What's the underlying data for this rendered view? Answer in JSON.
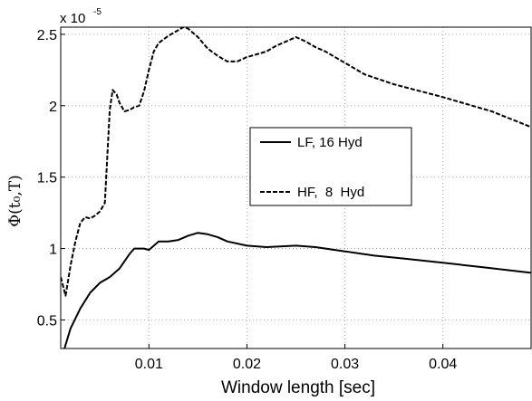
{
  "chart_data": {
    "type": "line",
    "title": "",
    "xlabel": "Window length [sec]",
    "ylabel": "Φ(t₀,T)",
    "y_multiplier": "x 10",
    "y_multiplier_exp": "-5",
    "xlim": [
      0.001,
      0.049
    ],
    "ylim": [
      0.3,
      2.55
    ],
    "x_ticks": [
      0.01,
      0.02,
      0.03,
      0.04
    ],
    "x_tick_labels": [
      "0.01",
      "0.02",
      "0.03",
      "0.04"
    ],
    "y_ticks": [
      0.5,
      1,
      1.5,
      2,
      2.5
    ],
    "y_tick_labels": [
      "0.5",
      "1",
      "1.5",
      "2",
      "2.5"
    ],
    "grid": true,
    "legend_position": "center-right",
    "series": [
      {
        "name": "LF, 16 Hyd",
        "style": "solid",
        "x": [
          0.0013,
          0.002,
          0.003,
          0.004,
          0.005,
          0.006,
          0.007,
          0.008,
          0.0085,
          0.009,
          0.0095,
          0.01,
          0.011,
          0.012,
          0.013,
          0.014,
          0.015,
          0.016,
          0.017,
          0.018,
          0.02,
          0.022,
          0.025,
          0.027,
          0.03,
          0.033,
          0.036,
          0.04,
          0.044,
          0.049
        ],
        "y": [
          0.28,
          0.44,
          0.58,
          0.69,
          0.76,
          0.8,
          0.86,
          0.96,
          1.0,
          1.0,
          1.0,
          0.99,
          1.05,
          1.05,
          1.06,
          1.09,
          1.11,
          1.1,
          1.08,
          1.05,
          1.02,
          1.01,
          1.02,
          1.01,
          0.98,
          0.95,
          0.93,
          0.9,
          0.87,
          0.83
        ]
      },
      {
        "name": "HF,  8  Hyd",
        "style": "dashed",
        "x": [
          0.001,
          0.0015,
          0.002,
          0.0025,
          0.003,
          0.0035,
          0.004,
          0.0045,
          0.005,
          0.0055,
          0.006,
          0.0063,
          0.0067,
          0.007,
          0.0075,
          0.008,
          0.0085,
          0.009,
          0.0095,
          0.01,
          0.0105,
          0.011,
          0.012,
          0.013,
          0.0135,
          0.014,
          0.015,
          0.016,
          0.017,
          0.018,
          0.019,
          0.02,
          0.021,
          0.022,
          0.023,
          0.024,
          0.025,
          0.026,
          0.027,
          0.028,
          0.03,
          0.032,
          0.035,
          0.04,
          0.045,
          0.049
        ],
        "y": [
          0.8,
          0.67,
          0.88,
          1.05,
          1.18,
          1.22,
          1.21,
          1.23,
          1.26,
          1.32,
          1.97,
          2.11,
          2.08,
          2.02,
          1.96,
          1.97,
          1.99,
          2.0,
          2.1,
          2.25,
          2.38,
          2.44,
          2.49,
          2.53,
          2.55,
          2.54,
          2.48,
          2.4,
          2.35,
          2.31,
          2.31,
          2.34,
          2.36,
          2.38,
          2.42,
          2.45,
          2.48,
          2.45,
          2.41,
          2.38,
          2.3,
          2.22,
          2.15,
          2.06,
          1.96,
          1.85
        ]
      }
    ]
  }
}
